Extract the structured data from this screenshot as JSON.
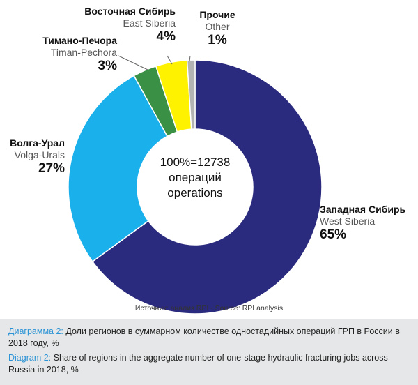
{
  "chart_data": {
    "type": "pie",
    "donut": true,
    "categories": [
      "Западная Сибирь",
      "Волга-Урал",
      "Тимано-Печора",
      "Восточная Сибирь",
      "Прочие"
    ],
    "categories_en": [
      "West Siberia",
      "Volga-Urals",
      "Timan-Pechora",
      "East Siberia",
      "Other"
    ],
    "values": [
      65,
      27,
      3,
      4,
      1
    ],
    "value_labels": [
      "65%",
      "27%",
      "3%",
      "4%",
      "1%"
    ],
    "colors": [
      "#2a2a7e",
      "#1ab0ec",
      "#3a9146",
      "#fff200",
      "#b3b3b3"
    ],
    "center_label": [
      "100%=12738",
      "операций",
      "operations"
    ],
    "source": "Источник: анализ RPI - Source: RPI analysis"
  },
  "caption": {
    "ru_label": "Диаграмма 2:",
    "ru_text": "Доли регионов в суммарном количестве одностадийных операций ГРП в России в 2018 году, %",
    "en_label": "Diagram 2:",
    "en_text": "Share of regions in the aggregate number of one-stage hydraulic fracturing jobs across Russia in 2018, %"
  }
}
